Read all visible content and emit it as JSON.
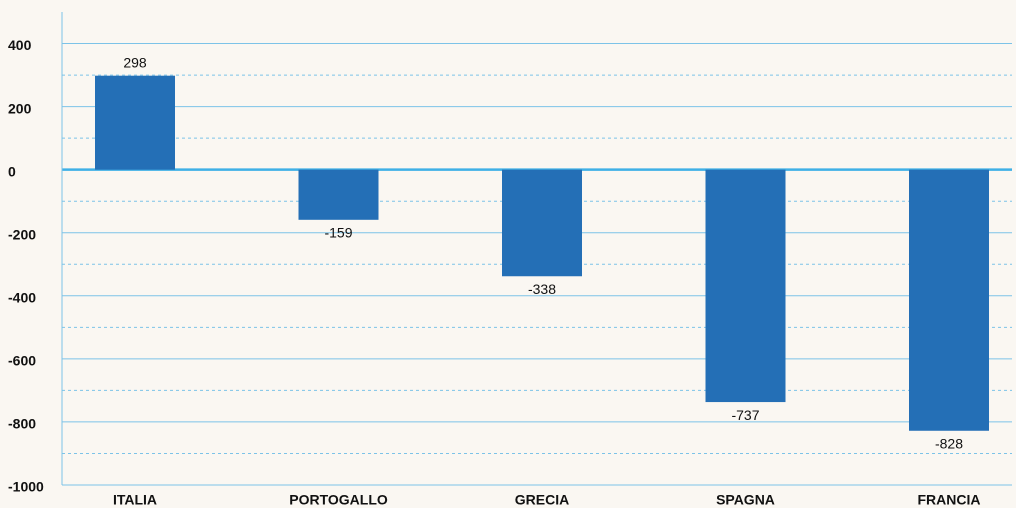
{
  "chart_data": {
    "type": "bar",
    "categories": [
      "ITALIA",
      "PORTOGALLO",
      "GRECIA",
      "SPAGNA",
      "FRANCIA"
    ],
    "values": [
      298,
      -159,
      -338,
      -737,
      -828
    ],
    "color": "#246fb6",
    "ylim": [
      -1000,
      500
    ],
    "yticks": [
      -1000,
      -800,
      -600,
      -400,
      -200,
      0,
      200,
      400
    ],
    "minor_yticks": [
      -900,
      -700,
      -500,
      -300,
      -100,
      100,
      300
    ],
    "grid": true
  }
}
